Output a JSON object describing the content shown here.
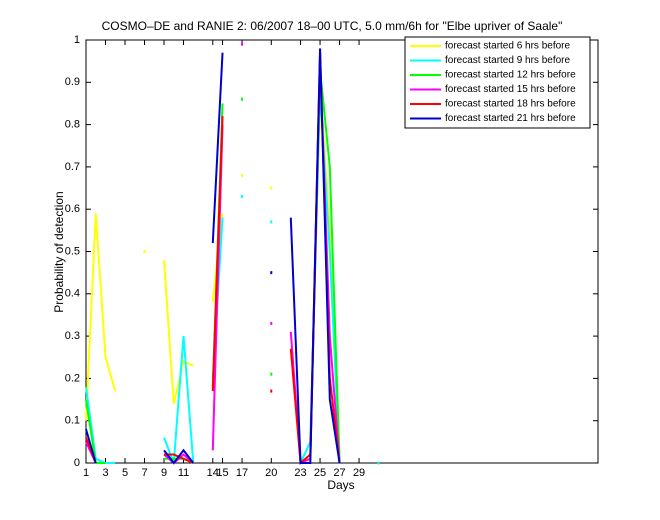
{
  "chart_data": {
    "type": "line",
    "title": "COSMO–DE and RANIE 2: 06/2007 18–00 UTC, 5.0 mm/6h for \"Elbe upriver of Saale\"",
    "x_label": "Days",
    "y_label": "Probability of detection",
    "x": [
      1,
      2,
      3,
      4,
      5,
      6,
      7,
      8,
      9,
      10,
      11,
      12,
      13,
      14,
      15,
      16,
      17,
      18,
      19,
      20,
      21,
      22,
      23,
      24,
      25,
      26,
      27,
      28,
      29,
      30,
      31
    ],
    "xlim": [
      1,
      53.5
    ],
    "xticks": [
      1,
      3,
      5,
      7,
      9,
      11,
      14,
      15,
      17,
      20,
      23,
      25,
      27,
      29
    ],
    "ylim": [
      0,
      1
    ],
    "yticks": [
      0,
      0.1,
      0.2,
      0.3,
      0.4,
      0.5,
      0.6,
      0.7,
      0.8,
      0.9,
      1
    ],
    "legend_position": "upper right",
    "series": [
      {
        "name": "forecast started 6 hrs before",
        "color": "#ffff00",
        "values": [
          0.1,
          0.59,
          0.25,
          0.17,
          null,
          null,
          0.5,
          null,
          0.48,
          0.14,
          0.24,
          0.23,
          null,
          0.38,
          0.59,
          null,
          0.68,
          null,
          null,
          0.65,
          null,
          null,
          0,
          0.02,
          0.9,
          0.55,
          0.02,
          null,
          null,
          null,
          null
        ]
      },
      {
        "name": "forecast started 9 hrs before",
        "color": "#00ffff",
        "values": [
          0.18,
          0.01,
          0,
          0,
          null,
          null,
          null,
          null,
          0.06,
          0,
          0.3,
          0,
          null,
          0.2,
          0.58,
          null,
          0.63,
          null,
          null,
          0.57,
          null,
          null,
          0,
          0.05,
          0.88,
          0.5,
          0,
          null,
          null,
          null,
          0
        ]
      },
      {
        "name": "forecast started 12 hrs before",
        "color": "#00ff00",
        "values": [
          0.15,
          0,
          0,
          null,
          null,
          null,
          null,
          null,
          0.01,
          0.01,
          0.01,
          0,
          null,
          0.18,
          0.85,
          null,
          0.86,
          null,
          null,
          0.21,
          null,
          null,
          0,
          0.01,
          0.93,
          0.7,
          0,
          null,
          null,
          null,
          null
        ]
      },
      {
        "name": "forecast started 15 hrs before",
        "color": "#ff00ff",
        "values": [
          0.05,
          0,
          null,
          null,
          null,
          null,
          null,
          null,
          0.02,
          0,
          0.02,
          0,
          null,
          0.03,
          0.8,
          null,
          0.99,
          null,
          null,
          0.33,
          null,
          0.31,
          0,
          0.01,
          0.95,
          0.3,
          0,
          null,
          null,
          null,
          null
        ]
      },
      {
        "name": "forecast started 18 hrs before",
        "color": "#ff0000",
        "values": [
          0.06,
          0,
          null,
          null,
          null,
          null,
          null,
          null,
          0.02,
          0.02,
          0.01,
          0,
          null,
          0.17,
          0.82,
          null,
          null,
          null,
          null,
          0.17,
          null,
          0.27,
          0,
          0.02,
          0.97,
          0.2,
          0,
          null,
          null,
          null,
          null
        ]
      },
      {
        "name": "forecast started 21 hrs before",
        "color": "#0000cc",
        "values": [
          0.08,
          0,
          null,
          null,
          null,
          null,
          null,
          null,
          0.03,
          0,
          0.03,
          0,
          null,
          0.52,
          0.97,
          null,
          null,
          null,
          null,
          0.45,
          null,
          0.58,
          0,
          0,
          0.98,
          0.15,
          0,
          null,
          null,
          null,
          null
        ]
      }
    ]
  }
}
